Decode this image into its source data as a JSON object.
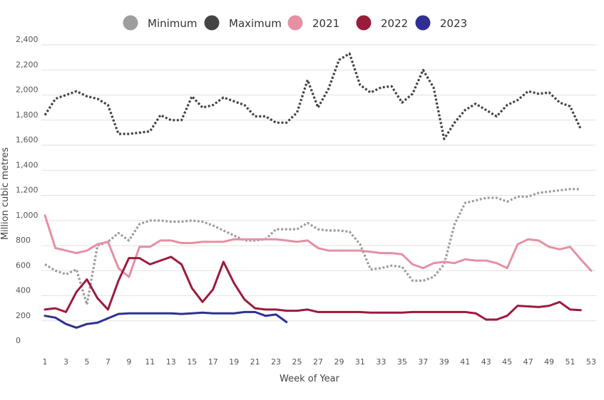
{
  "chart_data": {
    "type": "line",
    "xlabel": "Week of Year",
    "ylabel": "Million cubic metres",
    "ylim": [
      0,
      2400
    ],
    "xlim": [
      1,
      53
    ],
    "y_ticks": [
      0,
      200,
      400,
      600,
      800,
      1000,
      1200,
      1400,
      1600,
      1800,
      2000,
      2200,
      2400
    ],
    "y_tick_labels": [
      "0",
      "200",
      "400",
      "600",
      "800",
      "1,000",
      "1,200",
      "1,400",
      "1,600",
      "1,800",
      "2,000",
      "2,200",
      "2,400"
    ],
    "x_ticks": [
      1,
      3,
      5,
      7,
      9,
      11,
      13,
      15,
      17,
      19,
      21,
      23,
      25,
      27,
      29,
      31,
      33,
      35,
      37,
      39,
      41,
      43,
      45,
      47,
      49,
      51,
      53
    ],
    "grid": "horizontal",
    "legend_position": "top",
    "series": [
      {
        "name": "Minimum",
        "color": "#9e9e9e",
        "style": "dotted",
        "x": [
          1,
          2,
          3,
          4,
          5,
          6,
          7,
          8,
          9,
          10,
          11,
          12,
          13,
          14,
          15,
          16,
          17,
          18,
          19,
          20,
          21,
          22,
          23,
          24,
          25,
          26,
          27,
          28,
          29,
          30,
          31,
          32,
          33,
          34,
          35,
          36,
          37,
          38,
          39,
          40,
          41,
          42,
          43,
          44,
          45,
          46,
          47,
          48,
          49,
          50,
          51,
          52
        ],
        "values": [
          650,
          600,
          570,
          610,
          330,
          800,
          830,
          900,
          840,
          970,
          1000,
          1000,
          990,
          990,
          1000,
          990,
          960,
          920,
          880,
          840,
          840,
          850,
          930,
          930,
          930,
          980,
          930,
          920,
          920,
          910,
          810,
          610,
          620,
          640,
          630,
          520,
          520,
          550,
          650,
          970,
          1140,
          1160,
          1180,
          1180,
          1150,
          1190,
          1190,
          1220,
          1230,
          1240,
          1250,
          1250
        ]
      },
      {
        "name": "Maximum",
        "color": "#444444",
        "style": "dotted",
        "x": [
          1,
          2,
          3,
          4,
          5,
          6,
          7,
          8,
          9,
          10,
          11,
          12,
          13,
          14,
          15,
          16,
          17,
          18,
          19,
          20,
          21,
          22,
          23,
          24,
          25,
          26,
          27,
          28,
          29,
          30,
          31,
          32,
          33,
          34,
          35,
          36,
          37,
          38,
          39,
          40,
          41,
          42,
          43,
          44,
          45,
          46,
          47,
          48,
          49,
          50,
          51,
          52
        ],
        "values": [
          1840,
          1970,
          2000,
          2030,
          1990,
          1970,
          1920,
          1690,
          1690,
          1700,
          1710,
          1840,
          1800,
          1800,
          1990,
          1900,
          1920,
          1980,
          1950,
          1920,
          1830,
          1830,
          1780,
          1780,
          1860,
          2120,
          1900,
          2050,
          2280,
          2330,
          2080,
          2020,
          2060,
          2070,
          1940,
          2010,
          2200,
          2060,
          1650,
          1780,
          1880,
          1930,
          1880,
          1830,
          1920,
          1960,
          2030,
          2010,
          2020,
          1940,
          1910,
          1730
        ]
      },
      {
        "name": "2021",
        "color": "#e78fa3",
        "style": "solid",
        "x": [
          1,
          2,
          3,
          4,
          5,
          6,
          7,
          8,
          9,
          10,
          11,
          12,
          13,
          14,
          15,
          16,
          17,
          18,
          19,
          20,
          21,
          22,
          23,
          24,
          25,
          26,
          27,
          28,
          29,
          30,
          31,
          32,
          33,
          34,
          35,
          36,
          37,
          38,
          39,
          40,
          41,
          42,
          43,
          44,
          45,
          46,
          47,
          48,
          49,
          50,
          51,
          52,
          53
        ],
        "values": [
          1040,
          780,
          760,
          740,
          760,
          810,
          830,
          620,
          550,
          790,
          790,
          840,
          840,
          820,
          820,
          830,
          830,
          830,
          850,
          850,
          850,
          850,
          850,
          840,
          830,
          840,
          780,
          760,
          760,
          760,
          760,
          750,
          740,
          740,
          730,
          650,
          620,
          660,
          670,
          660,
          690,
          680,
          680,
          660,
          620,
          810,
          850,
          840,
          790,
          770,
          790,
          690,
          600
        ]
      },
      {
        "name": "2022",
        "color": "#9b1b3d",
        "style": "solid",
        "x": [
          1,
          2,
          3,
          4,
          5,
          6,
          7,
          8,
          9,
          10,
          11,
          12,
          13,
          14,
          15,
          16,
          17,
          18,
          19,
          20,
          21,
          22,
          23,
          24,
          25,
          26,
          27,
          28,
          29,
          30,
          31,
          32,
          33,
          34,
          35,
          36,
          37,
          38,
          39,
          40,
          41,
          42,
          43,
          44,
          45,
          46,
          47,
          48,
          49,
          50,
          51,
          52
        ],
        "values": [
          290,
          300,
          270,
          430,
          530,
          380,
          290,
          520,
          700,
          700,
          650,
          680,
          710,
          650,
          460,
          350,
          450,
          670,
          500,
          370,
          300,
          290,
          290,
          280,
          280,
          290,
          270,
          270,
          270,
          270,
          270,
          265,
          265,
          265,
          265,
          270,
          270,
          270,
          270,
          270,
          270,
          260,
          210,
          210,
          240,
          320,
          315,
          310,
          320,
          350,
          290,
          285
        ]
      },
      {
        "name": "2023",
        "color": "#2e3191",
        "style": "solid",
        "x": [
          1,
          2,
          3,
          4,
          5,
          6,
          7,
          8,
          9,
          10,
          11,
          12,
          13,
          14,
          15,
          16,
          17,
          18,
          19,
          20,
          21,
          22,
          23,
          24
        ],
        "values": [
          240,
          225,
          175,
          145,
          175,
          185,
          220,
          255,
          260,
          260,
          260,
          260,
          260,
          255,
          260,
          265,
          260,
          260,
          260,
          270,
          270,
          240,
          250,
          190
        ]
      }
    ]
  }
}
